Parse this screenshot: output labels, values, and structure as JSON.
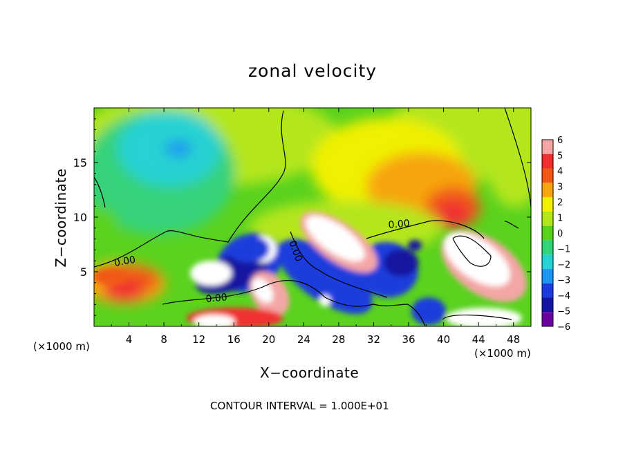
{
  "chart_data": {
    "type": "heatmap",
    "title": "zonal velocity",
    "xlabel": "X−coordinate",
    "ylabel": "Z−coordinate",
    "x_unit_left": "(×1000 m)",
    "x_unit_right": "(×1000 m)",
    "xlim": [
      0,
      50
    ],
    "ylim": [
      0,
      20
    ],
    "x_ticks": [
      4,
      8,
      12,
      16,
      20,
      24,
      28,
      32,
      36,
      40,
      44,
      48
    ],
    "y_ticks": [
      5,
      10,
      15
    ],
    "colorbar": {
      "levels": [
        6,
        5,
        4,
        3,
        2,
        1,
        0,
        -1,
        -2,
        -3,
        -4,
        -5,
        -6
      ],
      "labels": [
        "6",
        "5",
        "4",
        "3",
        "2",
        "1",
        "0",
        "−1",
        "−2",
        "−3",
        "−4",
        "−5",
        "−6"
      ],
      "colors": [
        "#f4a6a6",
        "#f03030",
        "#f05a14",
        "#f7a510",
        "#f0f000",
        "#b4e61e",
        "#5ad21e",
        "#34d27a",
        "#28d2d2",
        "#1e96f0",
        "#1e3cdc",
        "#1414a0",
        "#6a00a0"
      ]
    },
    "contour_labels": [
      "0.00",
      "0.00",
      "0.00",
      "0.00"
    ],
    "footer": "CONTOUR INTERVAL = 1.000E+01"
  }
}
